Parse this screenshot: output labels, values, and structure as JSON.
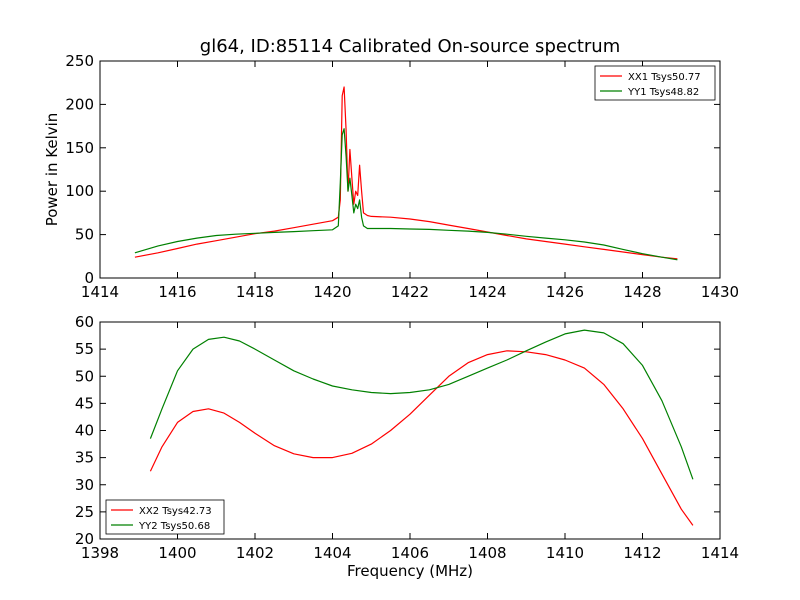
{
  "figure": {
    "title": "gl64, ID:85114 Calibrated On-source spectrum"
  },
  "chart_data": [
    {
      "type": "line",
      "title": "gl64, ID:85114 Calibrated On-source spectrum",
      "xlabel": "",
      "ylabel": "Power in Kelvin",
      "xlim": [
        1414,
        1430
      ],
      "ylim": [
        0,
        250
      ],
      "xticks": [
        1414,
        1416,
        1418,
        1420,
        1422,
        1424,
        1426,
        1428,
        1430
      ],
      "yticks": [
        0,
        50,
        100,
        150,
        200,
        250
      ],
      "grid": false,
      "legend": "top-right",
      "series": [
        {
          "name": "XX1 Tsys50.77",
          "color": "#ff0000",
          "x": [
            1414.9,
            1415.5,
            1416.0,
            1416.5,
            1417.0,
            1417.5,
            1418.0,
            1418.5,
            1419.0,
            1419.5,
            1420.0,
            1420.15,
            1420.2,
            1420.25,
            1420.3,
            1420.35,
            1420.4,
            1420.45,
            1420.5,
            1420.55,
            1420.6,
            1420.65,
            1420.7,
            1420.75,
            1420.8,
            1420.9,
            1421.0,
            1421.5,
            1422.0,
            1422.5,
            1423.0,
            1423.5,
            1424.0,
            1424.5,
            1425.0,
            1425.5,
            1426.0,
            1426.5,
            1427.0,
            1427.5,
            1428.0,
            1428.5,
            1428.9
          ],
          "y": [
            24,
            29,
            34,
            39,
            43,
            47,
            51,
            54,
            58,
            62,
            66,
            70,
            90,
            210,
            220,
            170,
            100,
            148,
            115,
            85,
            100,
            95,
            130,
            100,
            75,
            72,
            71,
            70,
            68,
            65,
            61,
            57,
            53,
            49,
            45,
            42,
            39,
            36,
            33,
            30,
            27,
            24,
            22
          ]
        },
        {
          "name": "YY1 Tsys48.82",
          "color": "#008000",
          "x": [
            1414.9,
            1415.5,
            1416.0,
            1416.5,
            1417.0,
            1417.5,
            1418.0,
            1418.5,
            1419.0,
            1419.5,
            1420.0,
            1420.15,
            1420.2,
            1420.25,
            1420.3,
            1420.35,
            1420.4,
            1420.45,
            1420.5,
            1420.55,
            1420.6,
            1420.65,
            1420.7,
            1420.75,
            1420.8,
            1420.9,
            1421.0,
            1421.5,
            1422.0,
            1422.5,
            1423.0,
            1423.5,
            1424.0,
            1424.5,
            1425.0,
            1425.5,
            1426.0,
            1426.5,
            1427.0,
            1427.5,
            1428.0,
            1428.5,
            1428.9
          ],
          "y": [
            29,
            37,
            42,
            46,
            49,
            50.5,
            51.5,
            52.5,
            53.5,
            54.5,
            55.5,
            60,
            110,
            165,
            172,
            140,
            100,
            115,
            95,
            75,
            85,
            80,
            90,
            70,
            60,
            57,
            57,
            57,
            56.5,
            56,
            55,
            54,
            52.5,
            50.5,
            48,
            46,
            44,
            41.5,
            38,
            33,
            28,
            24,
            21
          ]
        }
      ]
    },
    {
      "type": "line",
      "title": "",
      "xlabel": "Frequency (MHz)",
      "ylabel": "",
      "xlim": [
        1398,
        1414
      ],
      "ylim": [
        20,
        60
      ],
      "xticks": [
        1398,
        1400,
        1402,
        1404,
        1406,
        1408,
        1410,
        1412,
        1414
      ],
      "yticks": [
        20,
        25,
        30,
        35,
        40,
        45,
        50,
        55,
        60
      ],
      "grid": false,
      "legend": "bottom-left",
      "series": [
        {
          "name": "XX2 Tsys42.73",
          "color": "#ff0000",
          "x": [
            1399.3,
            1399.6,
            1400.0,
            1400.4,
            1400.8,
            1401.2,
            1401.6,
            1402.0,
            1402.5,
            1403.0,
            1403.5,
            1404.0,
            1404.5,
            1405.0,
            1405.5,
            1406.0,
            1406.5,
            1407.0,
            1407.5,
            1408.0,
            1408.5,
            1409.0,
            1409.5,
            1410.0,
            1410.5,
            1411.0,
            1411.5,
            1412.0,
            1412.5,
            1413.0,
            1413.3
          ],
          "y": [
            32.5,
            37,
            41.5,
            43.5,
            44,
            43.2,
            41.5,
            39.5,
            37.2,
            35.7,
            35,
            35,
            35.8,
            37.5,
            40,
            43,
            46.5,
            50,
            52.5,
            54,
            54.7,
            54.5,
            54,
            53,
            51.5,
            48.5,
            44,
            38.5,
            32,
            25.5,
            22.5
          ]
        },
        {
          "name": "YY2 Tsys50.68",
          "color": "#008000",
          "x": [
            1399.3,
            1399.6,
            1400.0,
            1400.4,
            1400.8,
            1401.2,
            1401.6,
            1402.0,
            1402.5,
            1403.0,
            1403.5,
            1404.0,
            1404.5,
            1405.0,
            1405.5,
            1406.0,
            1406.5,
            1407.0,
            1407.5,
            1408.0,
            1408.5,
            1409.0,
            1409.5,
            1410.0,
            1410.5,
            1411.0,
            1411.5,
            1412.0,
            1412.5,
            1413.0,
            1413.3
          ],
          "y": [
            38.5,
            44,
            51,
            55,
            56.8,
            57.2,
            56.5,
            55,
            53,
            51,
            49.5,
            48.2,
            47.5,
            47,
            46.8,
            47,
            47.5,
            48.5,
            50,
            51.5,
            53,
            54.7,
            56.3,
            57.8,
            58.5,
            58,
            56,
            52,
            45.5,
            37,
            31
          ]
        }
      ]
    }
  ]
}
